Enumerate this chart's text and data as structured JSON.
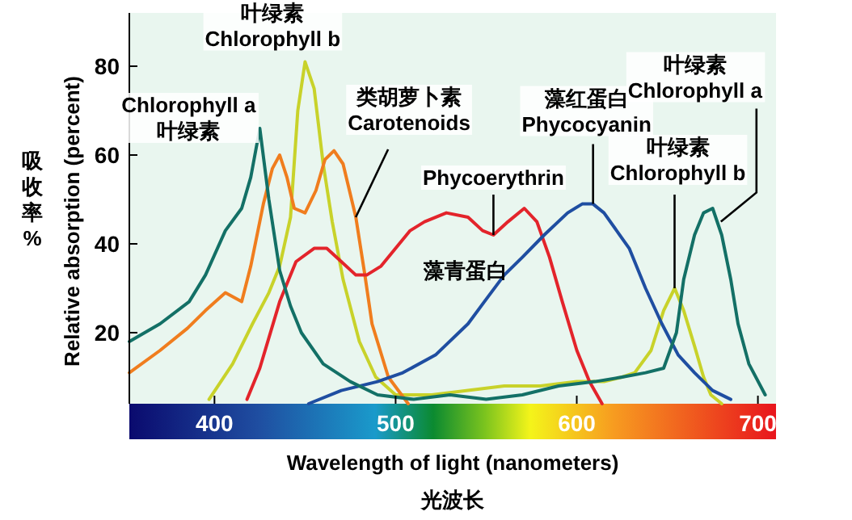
{
  "chart_data": {
    "type": "line",
    "xlabel": "Wavelength of light (nanometers)",
    "ylabel": "Relative absorption (percent)",
    "xlim": [
      353,
      710
    ],
    "ylim": [
      4,
      92
    ],
    "xticks": [
      400,
      500,
      600,
      700
    ],
    "yticks": [
      20,
      40,
      60,
      80
    ],
    "grid": false,
    "line_style": "solid",
    "series": [
      {
        "color": "#c8d22a",
        "x": [
          397,
          410,
          421,
          430,
          436,
          442,
          446,
          450,
          455,
          460,
          465,
          471,
          480,
          489,
          500,
          520,
          540,
          560,
          580,
          600,
          615,
          625,
          632,
          641,
          648,
          654,
          659,
          665,
          670,
          674,
          680
        ],
        "values": [
          5,
          13,
          22,
          29,
          35,
          46,
          70,
          81,
          75,
          58,
          45,
          32,
          18,
          10,
          6,
          6,
          7,
          8,
          8,
          9,
          9,
          10,
          11,
          16,
          25,
          30,
          25,
          17,
          10,
          6,
          4
        ]
      },
      {
        "color": "#f07d1e",
        "x": [
          353,
          370,
          385,
          395,
          406,
          415,
          420,
          427,
          432,
          436,
          440,
          444,
          450,
          456,
          461,
          466,
          471,
          478,
          483,
          487,
          496,
          507
        ],
        "values": [
          11,
          16,
          21,
          25,
          29,
          27,
          35,
          49,
          57,
          60,
          55,
          48,
          47,
          52,
          59,
          61,
          58,
          46,
          33,
          22,
          10,
          4
        ]
      },
      {
        "color": "#e3242b",
        "x": [
          418,
          425,
          436,
          445,
          455,
          462,
          470,
          478,
          484,
          492,
          500,
          508,
          516,
          528,
          540,
          548,
          554,
          562,
          571,
          578,
          585,
          592,
          600,
          607,
          614
        ],
        "values": [
          5,
          12,
          27,
          36,
          39,
          39,
          36,
          33,
          33,
          35,
          39,
          43,
          45,
          47,
          46,
          43,
          42,
          45,
          48,
          45,
          37,
          27,
          16,
          9,
          4
        ]
      },
      {
        "color": "#1f4ea1",
        "x": [
          452,
          470,
          490,
          504,
          522,
          540,
          549,
          560,
          570,
          582,
          595,
          603,
          609,
          615,
          622,
          629,
          638,
          647,
          656,
          665,
          675,
          685
        ],
        "values": [
          4,
          7,
          9,
          11,
          15,
          22,
          27,
          33,
          37,
          42,
          47,
          49,
          49,
          47,
          43,
          39,
          30,
          22,
          15,
          11,
          7,
          5
        ]
      },
      {
        "color": "#137066",
        "x": [
          353,
          370,
          386,
          395,
          406,
          415,
          420,
          425,
          430,
          436,
          442,
          448,
          460,
          475,
          490,
          510,
          530,
          550,
          570,
          590,
          610,
          625,
          638,
          648,
          655,
          659,
          665,
          670,
          675,
          680,
          685,
          689,
          695,
          704
        ],
        "values": [
          18,
          22,
          27,
          33,
          43,
          48,
          55,
          66,
          50,
          34,
          26,
          20,
          13,
          9,
          6,
          5,
          6,
          5,
          6,
          8,
          9,
          10,
          11,
          12,
          20,
          32,
          42,
          47,
          48,
          42,
          32,
          22,
          13,
          6
        ]
      }
    ],
    "annotations": [
      {
        "text": "Chlorophyll a\n叶绿素",
        "x": 425,
        "y": 66
      },
      {
        "text": "叶绿素\nChlorophyll b",
        "x": 450,
        "y": 81
      },
      {
        "text": "类胡萝卜素\nCarotenoids",
        "x": 478,
        "y": 46
      },
      {
        "text": "Phycoerythrin",
        "x": 554,
        "y": 42
      },
      "藻青蛋白",
      {
        "text": "藻红蛋白\nPhycocyanin",
        "x": 609,
        "y": 49
      },
      {
        "text": "叶绿素\nChlorophyll b",
        "x": 654,
        "y": 30
      },
      {
        "text": "叶绿素\nChlorophyll a",
        "x": 676,
        "y": 45
      },
      "吸收率\n%",
      "光波长"
    ]
  }
}
